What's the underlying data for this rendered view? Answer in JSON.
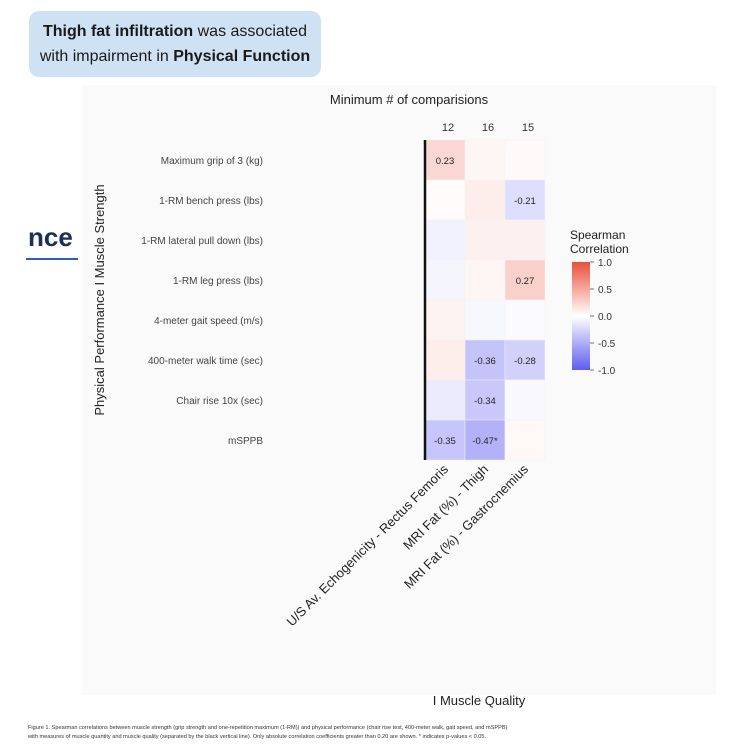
{
  "callout": {
    "bold1": "Thigh fat infiltration",
    "text1": " was associated",
    "text2": "with impairment in ",
    "bold2": "Physical Function"
  },
  "fragment_text": "nce",
  "colors": {
    "positive": "#e8513a",
    "negative": "#5e5cf0",
    "neutral": "#ffffff",
    "callout_bg": "#cfe2f3"
  },
  "chart_data": {
    "type": "heatmap",
    "top_title": "Minimum # of comparisions",
    "top_counts": [
      "12",
      "16",
      "15"
    ],
    "columns": [
      "U/S Av. Echogenicity - Rectus Femoris",
      "MRI Fat (%) - Thigh",
      "MRI Fat (%) - Gastrocnemius"
    ],
    "rows": [
      "Maximum grip of 3 (kg)",
      "1-RM bench press (lbs)",
      "1-RM lateral pull down (lbs)",
      "1-RM leg press (lbs)",
      "4-meter gait speed (m/s)",
      "400-meter walk time (sec)",
      "Chair rise 10x (sec)",
      "mSPPB"
    ],
    "values": [
      [
        0.23,
        0.05,
        0.03
      ],
      [
        0.02,
        0.1,
        -0.21
      ],
      [
        -0.08,
        0.08,
        0.08
      ],
      [
        -0.06,
        0.05,
        0.27
      ],
      [
        0.07,
        -0.05,
        -0.03
      ],
      [
        0.1,
        -0.36,
        -0.28
      ],
      [
        -0.12,
        -0.34,
        -0.04
      ],
      [
        -0.35,
        -0.47,
        0.04
      ]
    ],
    "labels": [
      [
        "0.23",
        "",
        ""
      ],
      [
        "",
        "",
        "-0.21"
      ],
      [
        "",
        "",
        ""
      ],
      [
        "",
        "",
        "0.27"
      ],
      [
        "",
        "",
        ""
      ],
      [
        "",
        "-0.36",
        "-0.28"
      ],
      [
        "",
        "-0.34",
        ""
      ],
      [
        "-0.35",
        "-0.47*",
        ""
      ]
    ],
    "ylabel": "Physical Performance  I  Muscle Strength",
    "xlabel": "I    Muscle Quality",
    "legend": {
      "title_line1": "Spearman",
      "title_line2": "Correlation",
      "ticks": [
        "1.0",
        "0.5",
        "0.0",
        "-0.5",
        "-1.0"
      ],
      "range": [
        -1,
        1
      ],
      "position": "right"
    }
  },
  "caption": {
    "line1": "Figure 1. Spearman correlations between muscle strength (grip strength and one-repetition maximum (1-RM)) and physical performance (chair rise test, 400-meter walk, gait speed, and mSPPB)",
    "line2": "with measures of muscle quantity and muscle quality (separated by the black vertical line). Only absolute correlation coefficients greater than 0.20 are shown. * indicates p-values < 0.05."
  }
}
